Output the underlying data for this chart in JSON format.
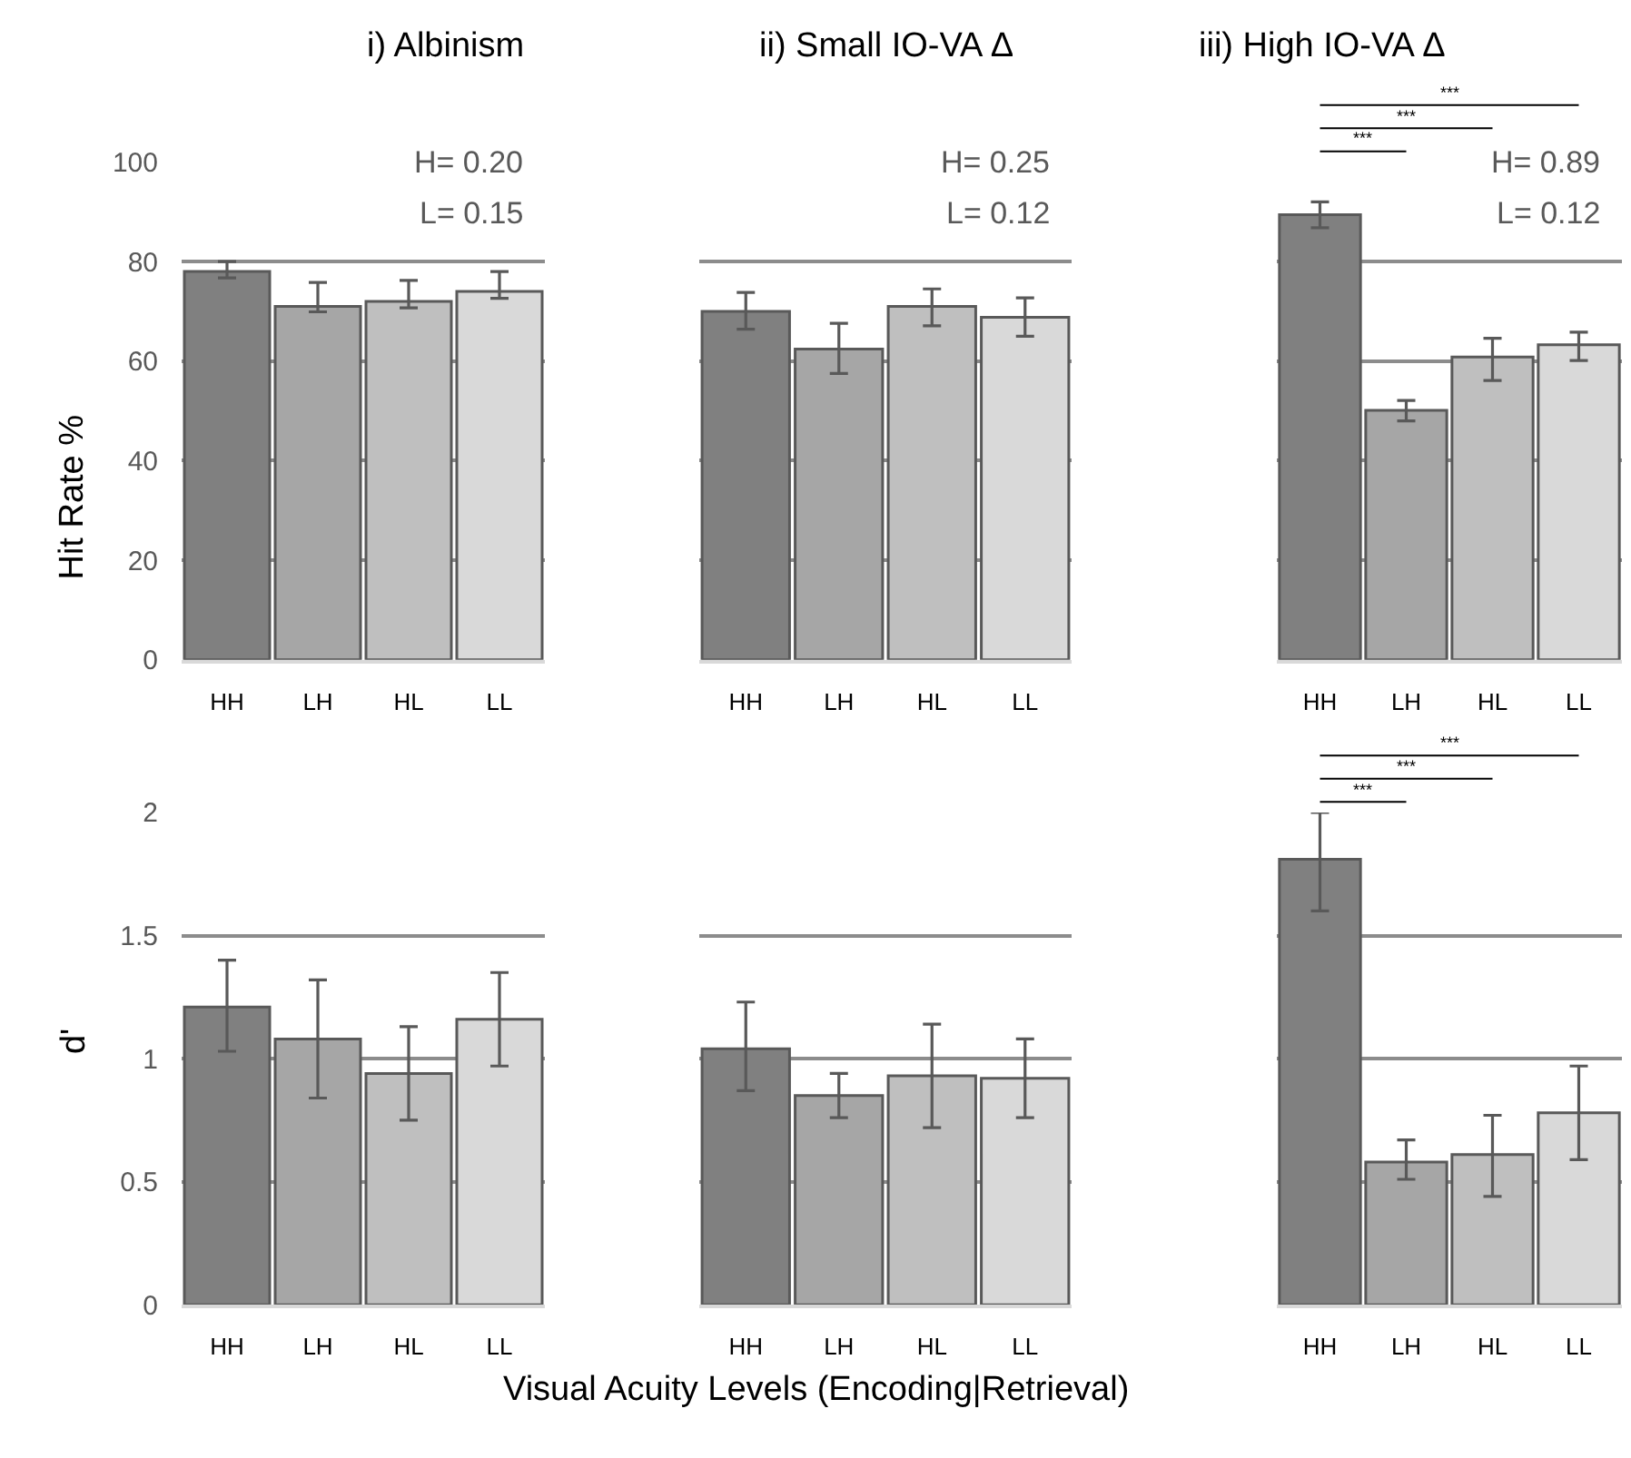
{
  "chart_data": [
    {
      "type": "bar",
      "title": "i) Albinism",
      "ylabel": "Hit Rate %",
      "categories": [
        "HH",
        "LH",
        "HL",
        "LL"
      ],
      "values": [
        78,
        71,
        72,
        74
      ],
      "colors": [
        "#808080",
        "#a6a6a6",
        "#bfbfbf",
        "#d9d9d9"
      ],
      "errors": [
        [
          76.7,
          80
        ],
        [
          69.9,
          75.8
        ],
        [
          70.7,
          76.2
        ],
        [
          72.6,
          78
        ]
      ],
      "ylim": [
        0,
        100
      ],
      "yticks": [
        0,
        20,
        40,
        60,
        80,
        100
      ],
      "grid": "y",
      "annotations": [
        "H= 0.20",
        "L= 0.15"
      ]
    },
    {
      "type": "bar",
      "title": "ii) Small IO-VA Δ",
      "categories": [
        "HH",
        "LH",
        "HL",
        "LL"
      ],
      "values": [
        70,
        62.4,
        71,
        68.8
      ],
      "colors": [
        "#808080",
        "#a6a6a6",
        "#bfbfbf",
        "#d9d9d9"
      ],
      "errors": [
        [
          66.4,
          73.8
        ],
        [
          57.5,
          67.6
        ],
        [
          67.1,
          74.5
        ],
        [
          65,
          72.7
        ]
      ],
      "ylim": [
        0,
        100
      ],
      "yticks": [
        0,
        20,
        40,
        60,
        80,
        100
      ],
      "grid": "y",
      "tick_labels": "x",
      "annotations": [
        "H= 0.25",
        "L= 0.12"
      ]
    },
    {
      "type": "bar",
      "title": "iii) High IO-VA Δ",
      "categories": [
        "HH",
        "LH",
        "HL",
        "LL"
      ],
      "values": [
        89.4,
        50.1,
        60.8,
        63.3
      ],
      "colors": [
        "#808080",
        "#a6a6a6",
        "#bfbfbf",
        "#d9d9d9"
      ],
      "errors": [
        [
          86.8,
          92
        ],
        [
          48,
          52.1
        ],
        [
          56.1,
          64.6
        ],
        [
          60.1,
          65.8
        ]
      ],
      "ylim": [
        0,
        100
      ],
      "yticks": [
        0,
        20,
        40,
        60,
        80,
        100
      ],
      "grid": "y",
      "tick_labels": "x",
      "annotations": [
        "***",
        "***",
        "***",
        "H= 0.89",
        "L= 0.12"
      ]
    },
    {
      "type": "bar",
      "ylabel": "d'",
      "categories": [
        "HH",
        "LH",
        "HL",
        "LL"
      ],
      "values": [
        1.21,
        1.08,
        0.94,
        1.16
      ],
      "colors": [
        "#808080",
        "#a6a6a6",
        "#bfbfbf",
        "#d9d9d9"
      ],
      "errors": [
        [
          1.03,
          1.4
        ],
        [
          0.84,
          1.32
        ],
        [
          0.75,
          1.13
        ],
        [
          0.97,
          1.35
        ]
      ],
      "ylim": [
        0,
        2
      ],
      "yticks": [
        0,
        0.5,
        1,
        1.5,
        2
      ],
      "grid": "y"
    },
    {
      "type": "bar",
      "xlabel": "Visual Acuity Levels (Encoding|Retrieval)",
      "categories": [
        "HH",
        "LH",
        "HL",
        "LL"
      ],
      "values": [
        1.04,
        0.85,
        0.93,
        0.92
      ],
      "colors": [
        "#808080",
        "#a6a6a6",
        "#bfbfbf",
        "#d9d9d9"
      ],
      "errors": [
        [
          0.87,
          1.23
        ],
        [
          0.76,
          0.94
        ],
        [
          0.72,
          1.14
        ],
        [
          0.76,
          1.08
        ]
      ],
      "ylim": [
        0,
        2
      ],
      "yticks": [
        0,
        0.5,
        1,
        1.5,
        2
      ],
      "grid": "y",
      "tick_labels": "x"
    },
    {
      "type": "bar",
      "categories": [
        "HH",
        "LH",
        "HL",
        "LL"
      ],
      "values": [
        1.81,
        0.58,
        0.61,
        0.78
      ],
      "colors": [
        "#808080",
        "#a6a6a6",
        "#bfbfbf",
        "#d9d9d9"
      ],
      "errors": [
        [
          1.6,
          2
        ],
        [
          0.51,
          0.67
        ],
        [
          0.44,
          0.77
        ],
        [
          0.59,
          0.97
        ]
      ],
      "ylim": [
        0,
        2
      ],
      "yticks": [
        0,
        0.5,
        1,
        1.5,
        2
      ],
      "grid": "y",
      "tick_labels": "x",
      "annotations": [
        "***",
        "***",
        "***"
      ]
    }
  ]
}
